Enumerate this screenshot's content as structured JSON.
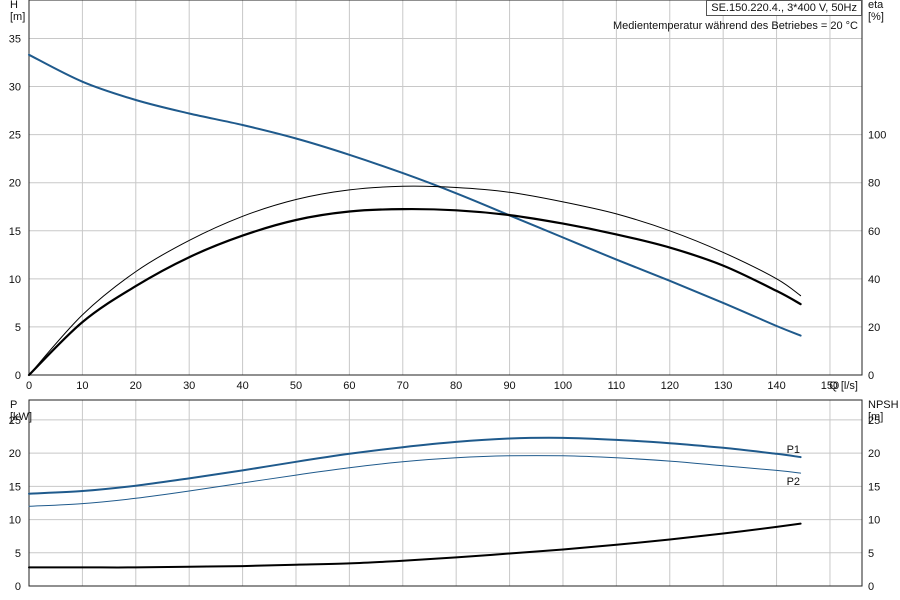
{
  "header": {
    "model": "SE.150.220.4., 3*400 V, 50Hz",
    "medium": "Medientemperatur während des Betriebes = 20 °C"
  },
  "colors": {
    "blue": "#1f5a8c",
    "black": "#000000"
  },
  "chart_data": [
    {
      "type": "line",
      "panel": "top",
      "ylabel_left": [
        "H",
        "[m]"
      ],
      "ylabel_right": [
        "eta",
        "[%]"
      ],
      "xlabel": "Q [l/s]",
      "xlim": [
        0,
        156
      ],
      "xticks": [
        0,
        10,
        20,
        30,
        40,
        50,
        60,
        70,
        80,
        90,
        100,
        110,
        120,
        130,
        140,
        150
      ],
      "ylim_left": [
        0,
        39
      ],
      "yticks_left": [
        0,
        5,
        10,
        15,
        20,
        25,
        30,
        35
      ],
      "ylim_right": [
        0,
        156
      ],
      "yticks_right": [
        0,
        20,
        40,
        60,
        80,
        100
      ],
      "grid": true,
      "series": [
        {
          "axis": "left",
          "color": "blue",
          "width": 2,
          "x": [
            0,
            10,
            20,
            30,
            40,
            50,
            60,
            70,
            80,
            90,
            100,
            110,
            120,
            130,
            140,
            144.5
          ],
          "y": [
            33.3,
            30.5,
            28.6,
            27.2,
            26.0,
            24.6,
            22.9,
            21.0,
            18.9,
            16.6,
            14.3,
            12.0,
            9.8,
            7.5,
            5.1,
            4.1
          ]
        },
        {
          "axis": "right",
          "color": "black",
          "width": 1,
          "x": [
            0,
            10,
            20,
            30,
            40,
            50,
            60,
            70,
            80,
            90,
            100,
            110,
            120,
            130,
            140,
            144.5
          ],
          "y": [
            0,
            25,
            43,
            56,
            66,
            73,
            77,
            78.5,
            78,
            76,
            72,
            67,
            60,
            51,
            40,
            33
          ]
        },
        {
          "axis": "right",
          "color": "black",
          "width": 2.2,
          "x": [
            0,
            10,
            20,
            30,
            40,
            50,
            60,
            70,
            80,
            90,
            100,
            110,
            120,
            130,
            140,
            144.5
          ],
          "y": [
            0,
            22,
            37,
            49,
            58,
            64.5,
            68,
            69,
            68.5,
            66.5,
            63,
            58.5,
            53,
            45.5,
            35,
            29.5
          ]
        }
      ]
    },
    {
      "type": "line",
      "panel": "bottom",
      "ylabel_left": [
        "P",
        "[kW]"
      ],
      "ylabel_right": [
        "NPSH",
        "[m]"
      ],
      "xlim": [
        0,
        156
      ],
      "xticks": [
        0,
        10,
        20,
        30,
        40,
        50,
        60,
        70,
        80,
        90,
        100,
        110,
        120,
        130,
        140,
        150
      ],
      "ylim_left": [
        0,
        28
      ],
      "yticks_left": [
        0,
        5,
        10,
        15,
        20,
        25
      ],
      "ylim_right": [
        0,
        28
      ],
      "yticks_right": [
        0,
        5,
        10,
        15,
        20,
        25
      ],
      "grid": true,
      "series": [
        {
          "name": "P1",
          "axis": "left",
          "color": "blue",
          "width": 2,
          "x": [
            0,
            10,
            20,
            30,
            40,
            50,
            60,
            70,
            80,
            90,
            100,
            110,
            120,
            130,
            140,
            144.5
          ],
          "y": [
            13.9,
            14.3,
            15.1,
            16.2,
            17.4,
            18.7,
            19.9,
            20.9,
            21.7,
            22.2,
            22.3,
            22.0,
            21.5,
            20.8,
            19.9,
            19.4
          ]
        },
        {
          "name": "P2",
          "axis": "left",
          "color": "blue",
          "width": 1,
          "x": [
            0,
            10,
            20,
            30,
            40,
            50,
            60,
            70,
            80,
            90,
            100,
            110,
            120,
            130,
            140,
            144.5
          ],
          "y": [
            12.0,
            12.4,
            13.2,
            14.3,
            15.5,
            16.7,
            17.8,
            18.7,
            19.3,
            19.6,
            19.6,
            19.3,
            18.8,
            18.1,
            17.4,
            17.0
          ]
        },
        {
          "axis": "right",
          "color": "black",
          "width": 2,
          "x": [
            0,
            10,
            20,
            30,
            40,
            50,
            60,
            70,
            80,
            90,
            100,
            110,
            120,
            130,
            140,
            144.5
          ],
          "y": [
            2.8,
            2.8,
            2.8,
            2.9,
            3.0,
            3.2,
            3.4,
            3.8,
            4.3,
            4.9,
            5.5,
            6.2,
            7.0,
            7.9,
            8.9,
            9.4
          ]
        }
      ]
    }
  ]
}
